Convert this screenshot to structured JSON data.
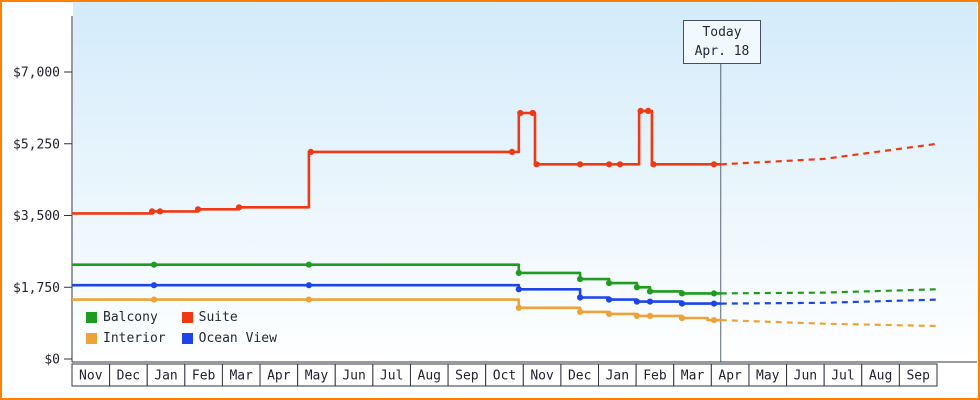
{
  "frame": {
    "border_color": "#ff8000",
    "background": "#ffffff"
  },
  "chart_data": {
    "type": "line",
    "title": "",
    "x_axis": {
      "months": [
        "Nov",
        "Dec",
        "Jan",
        "Feb",
        "Mar",
        "Apr",
        "May",
        "Jun",
        "Jul",
        "Aug",
        "Sep",
        "Oct",
        "Nov",
        "Dec",
        "Jan",
        "Feb",
        "Mar",
        "Apr",
        "May",
        "Jun",
        "Jul",
        "Aug",
        "Sep"
      ],
      "unit_note": "x values are fractional month indexes; 0 = start of first Nov, 23 = end of last Sep"
    },
    "y_axis": {
      "range": [
        0,
        7000
      ],
      "ticks": [
        {
          "value": 0,
          "label": "$0"
        },
        {
          "value": 1750,
          "label": "$1,750"
        },
        {
          "value": 3500,
          "label": "$3,500"
        },
        {
          "value": 5250,
          "label": "$5,250"
        },
        {
          "value": 7000,
          "label": "$7,000"
        }
      ]
    },
    "today": {
      "x": 17.25,
      "label": "Today",
      "date": "Apr. 18"
    },
    "plot": {
      "bg_top": "#d3ebfa",
      "bg_bottom": "#ffffff",
      "axis_color": "#333344",
      "text_color": "#222233",
      "today_line_color": "#5a6672",
      "grid": false,
      "legend_position": "bottom-left"
    },
    "series": [
      {
        "name": "Balcony",
        "color": "#1f9c1f",
        "steps": [
          [
            0,
            2300
          ],
          [
            11.88,
            2100
          ],
          [
            13.51,
            1950
          ],
          [
            14.28,
            1850
          ],
          [
            15.02,
            1750
          ],
          [
            15.37,
            1650
          ],
          [
            16.22,
            1600
          ]
        ],
        "solid_end": 17.25,
        "markers": [
          [
            2.18,
            2300
          ],
          [
            6.3,
            2300
          ],
          [
            11.88,
            2100
          ],
          [
            13.51,
            1950
          ],
          [
            14.28,
            1850
          ],
          [
            15.02,
            1750
          ],
          [
            15.37,
            1650
          ],
          [
            16.22,
            1600
          ],
          [
            17.07,
            1600
          ]
        ],
        "forecast": [
          [
            17.25,
            1600
          ],
          [
            20,
            1620
          ],
          [
            23,
            1700
          ]
        ]
      },
      {
        "name": "Suite",
        "color": "#ee3914",
        "steps": [
          [
            0,
            3550
          ],
          [
            2.13,
            3600
          ],
          [
            3.35,
            3650
          ],
          [
            4.44,
            3700
          ],
          [
            6.3,
            5050
          ],
          [
            11.88,
            6000
          ],
          [
            12.31,
            4750
          ],
          [
            15.08,
            6050
          ],
          [
            15.42,
            4750
          ]
        ],
        "solid_end": 17.25,
        "markers": [
          [
            2.13,
            3600
          ],
          [
            2.34,
            3600
          ],
          [
            3.35,
            3650
          ],
          [
            4.44,
            3700
          ],
          [
            6.35,
            5050
          ],
          [
            11.7,
            5050
          ],
          [
            11.92,
            6000
          ],
          [
            12.25,
            6000
          ],
          [
            12.35,
            4750
          ],
          [
            13.51,
            4750
          ],
          [
            14.28,
            4750
          ],
          [
            14.57,
            4750
          ],
          [
            15.12,
            6050
          ],
          [
            15.32,
            6050
          ],
          [
            15.46,
            4750
          ],
          [
            17.07,
            4750
          ]
        ],
        "forecast": [
          [
            17.25,
            4750
          ],
          [
            20,
            4880
          ],
          [
            23,
            5250
          ]
        ]
      },
      {
        "name": "Interior",
        "color": "#eda337",
        "steps": [
          [
            0,
            1450
          ],
          [
            11.88,
            1250
          ],
          [
            13.51,
            1150
          ],
          [
            14.28,
            1100
          ],
          [
            15.02,
            1050
          ],
          [
            16.22,
            1000
          ],
          [
            16.9,
            950
          ]
        ],
        "solid_end": 17.25,
        "markers": [
          [
            2.18,
            1450
          ],
          [
            6.3,
            1450
          ],
          [
            11.88,
            1250
          ],
          [
            13.51,
            1150
          ],
          [
            14.28,
            1100
          ],
          [
            15.02,
            1050
          ],
          [
            15.37,
            1050
          ],
          [
            16.22,
            1000
          ],
          [
            17.07,
            950
          ]
        ],
        "forecast": [
          [
            17.25,
            950
          ],
          [
            20,
            860
          ],
          [
            23,
            805
          ]
        ]
      },
      {
        "name": "Ocean View",
        "color": "#1c44e8",
        "steps": [
          [
            0,
            1800
          ],
          [
            11.88,
            1700
          ],
          [
            13.51,
            1500
          ],
          [
            14.28,
            1450
          ],
          [
            15.02,
            1400
          ],
          [
            16.22,
            1350
          ]
        ],
        "solid_end": 17.25,
        "markers": [
          [
            2.18,
            1800
          ],
          [
            6.3,
            1800
          ],
          [
            11.88,
            1700
          ],
          [
            13.51,
            1500
          ],
          [
            14.28,
            1450
          ],
          [
            15.02,
            1400
          ],
          [
            15.37,
            1400
          ],
          [
            16.22,
            1350
          ],
          [
            17.07,
            1350
          ]
        ],
        "forecast": [
          [
            17.25,
            1350
          ],
          [
            20,
            1370
          ],
          [
            23,
            1450
          ]
        ]
      }
    ],
    "legend": {
      "order": [
        "Balcony",
        "Suite",
        "Interior",
        "Ocean View"
      ]
    }
  }
}
